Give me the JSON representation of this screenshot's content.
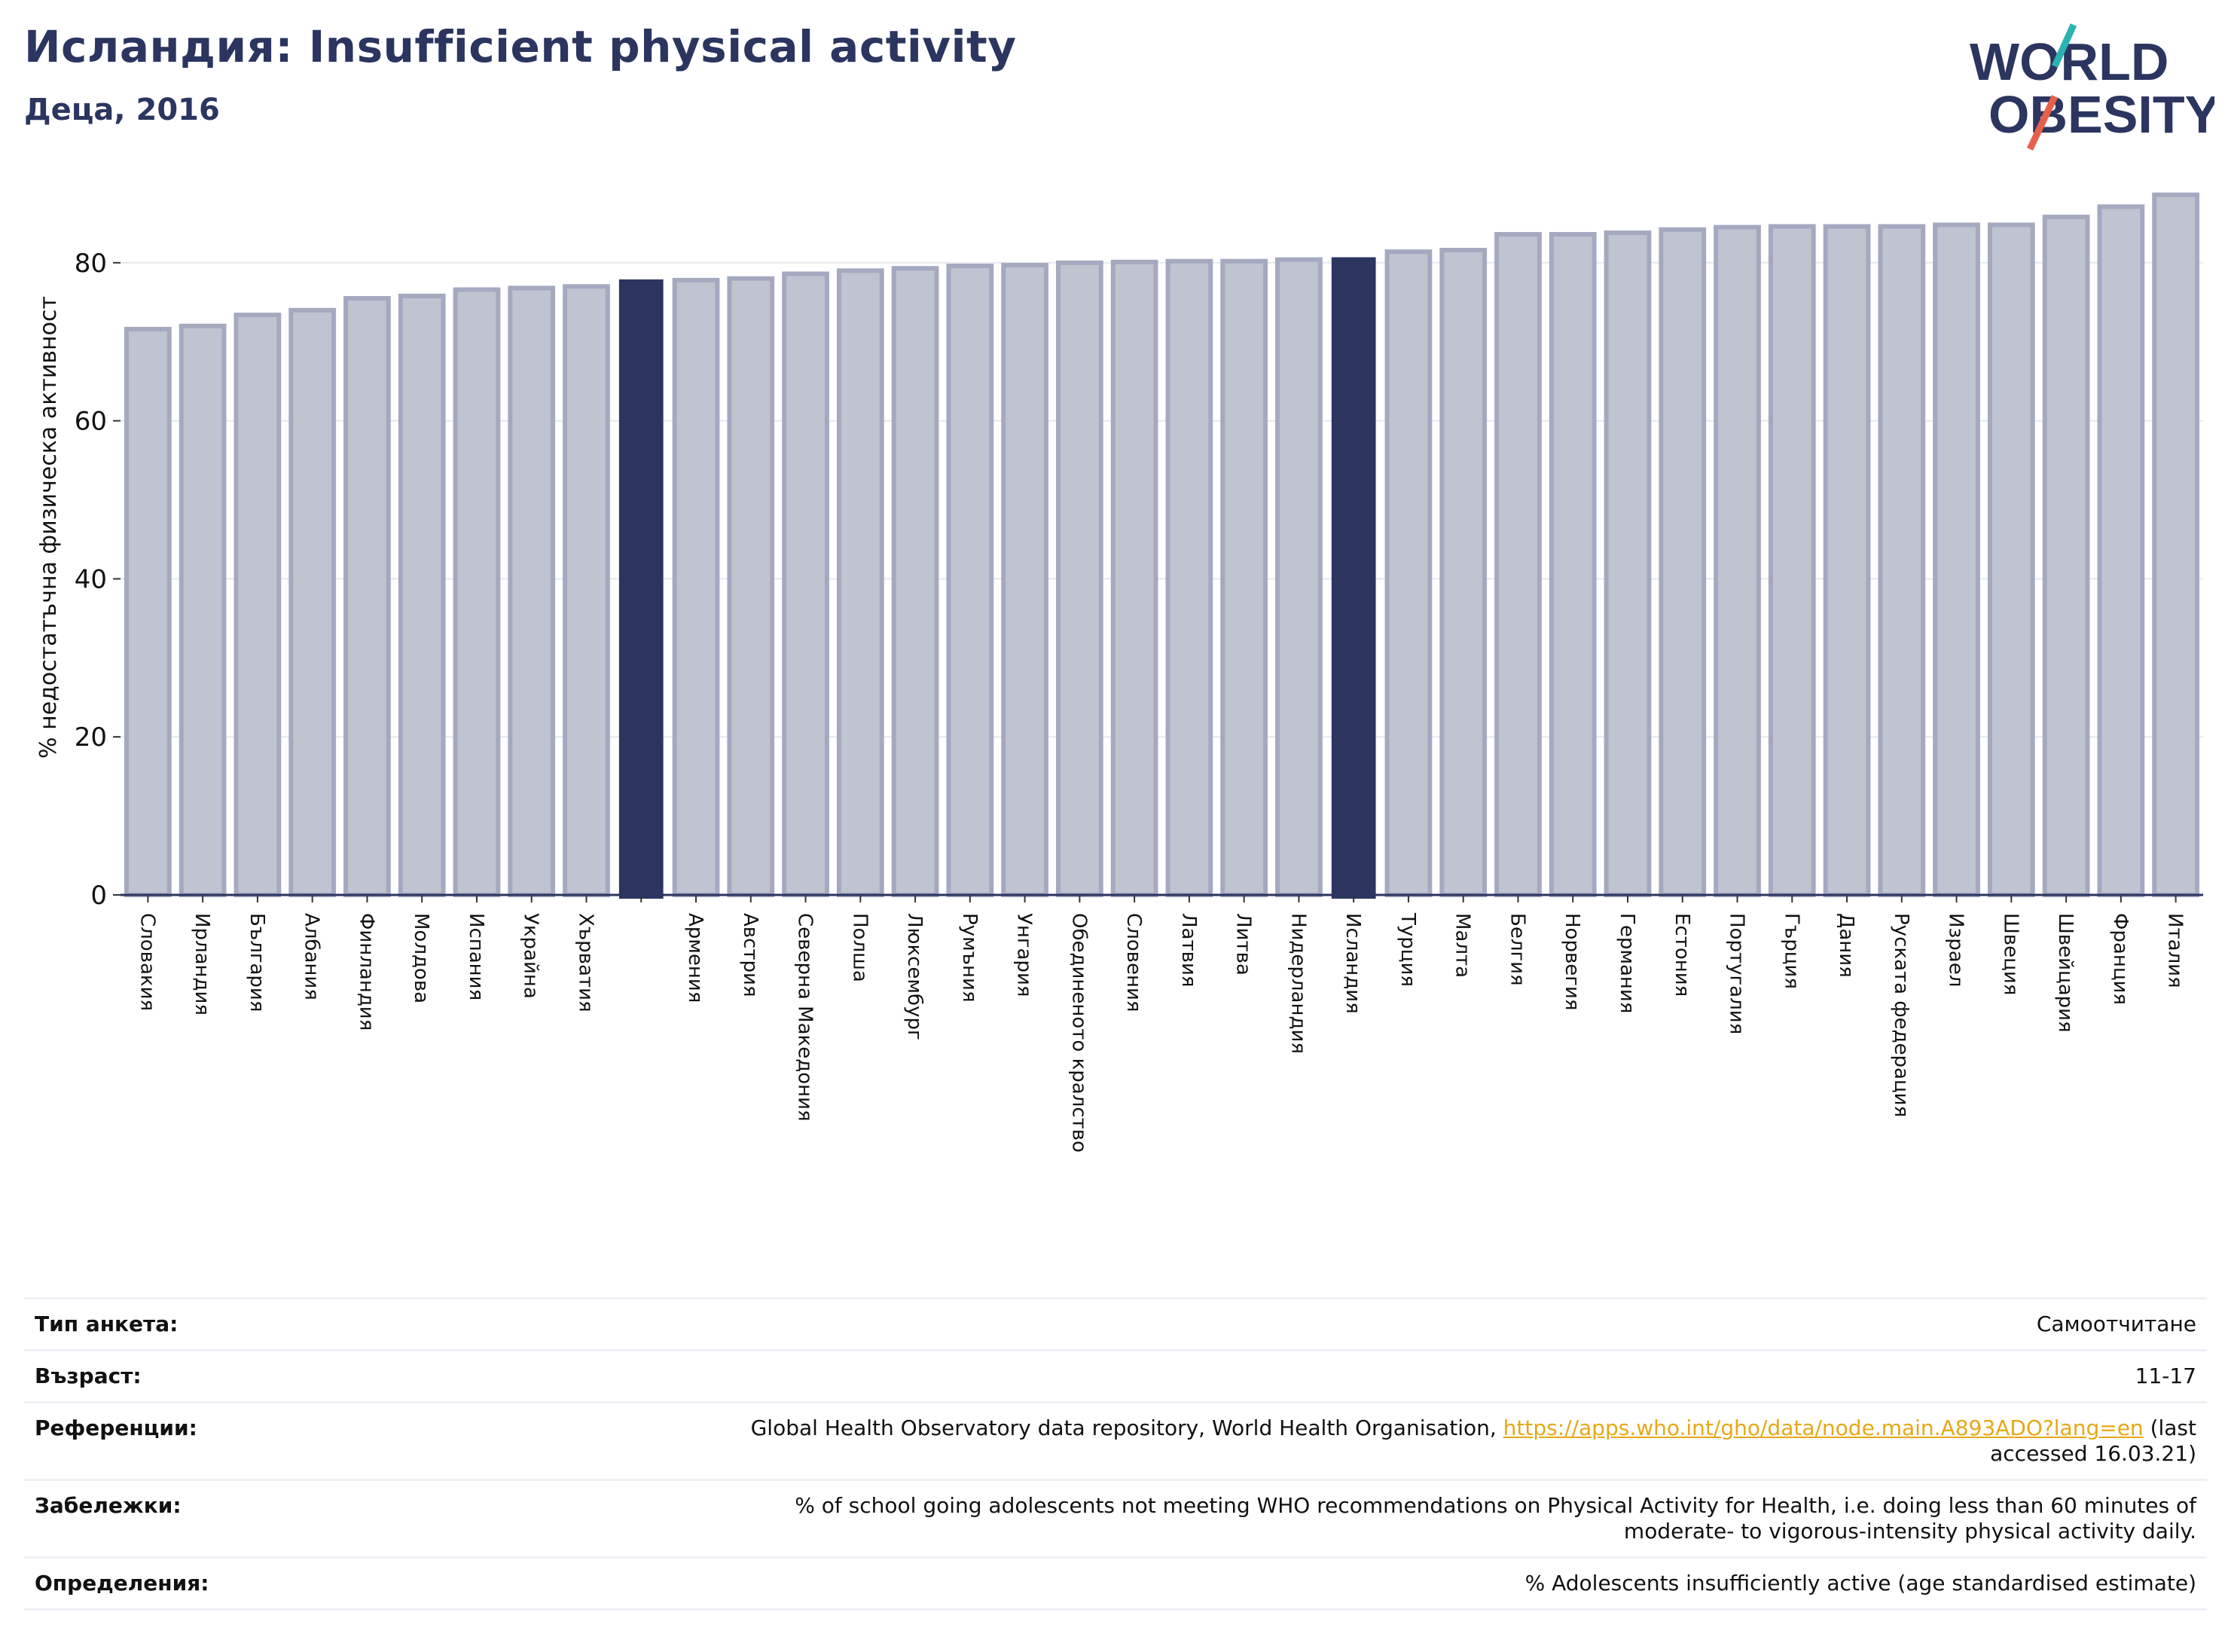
{
  "header": {
    "title": "Исландия: Insufficient physical activity",
    "subtitle": "Деца, 2016"
  },
  "logo": {
    "line1": "WORLD",
    "line2": "OBESITY",
    "accent_colors": [
      "#2bb3b1",
      "#e8604c"
    ],
    "text_color": "#2b3560"
  },
  "chart_data": {
    "type": "bar",
    "ylabel": "% недостатъчна физическа активност",
    "xlabel": "",
    "ylim": [
      0,
      90
    ],
    "yticks": [
      0,
      20,
      40,
      60,
      80
    ],
    "grid": true,
    "categories": [
      "Словакия",
      "Ирландия",
      "България",
      "Албания",
      "Финландия",
      "Молдова",
      "Испания",
      "Украйна",
      "Хърватия",
      "",
      "Армения",
      "Австрия",
      "Северна Македония",
      "Полша",
      "Люксембург",
      "Румъния",
      "Унгария",
      "Обединеното кралство",
      "Словения",
      "Латвия",
      "Литва",
      "Нидерландия",
      "Исландия",
      "Турция",
      "Малта",
      "Белгия",
      "Норвегия",
      "Германия",
      "Естония",
      "Португалия",
      "Гърция",
      "Дания",
      "Руската федерация",
      "Израел",
      "Швеция",
      "Швейцария",
      "Франция",
      "Италия"
    ],
    "values": [
      71.6,
      72.0,
      73.4,
      74.0,
      75.5,
      75.8,
      76.6,
      76.8,
      77.0,
      77.8,
      77.8,
      78.0,
      78.6,
      79.0,
      79.3,
      79.6,
      79.7,
      80.0,
      80.1,
      80.2,
      80.2,
      80.4,
      80.6,
      81.4,
      81.6,
      83.6,
      83.6,
      83.8,
      84.2,
      84.5,
      84.6,
      84.6,
      84.6,
      84.8,
      84.8,
      85.8,
      87.1,
      88.6
    ],
    "highlighted": [
      "",
      "Исландия"
    ],
    "colors": {
      "default_fill": "#c0c3d0",
      "default_stroke": "#a5a9c0",
      "highlight": "#2b3560",
      "axis": "#2b3560",
      "grid": "#e6e8ee"
    }
  },
  "meta": {
    "rows": [
      {
        "key": "Тип анкета:",
        "value": "Самоотчитане"
      },
      {
        "key": "Възраст:",
        "value": "11-17"
      },
      {
        "key": "Референции:",
        "value": "Global Health Observatory data repository, World Health Organisation, ",
        "link": "https://apps.who.int/gho/data/node.main.A893ADO?lang=en",
        "value_after": " (last accessed 16.03.21)"
      },
      {
        "key": "Забележки:",
        "value": "% of school going adolescents not meeting WHO recommendations on Physical Activity for Health, i.e. doing less than 60 minutes of moderate- to vigorous-intensity physical activity daily."
      },
      {
        "key": "Определения:",
        "value": "% Adolescents insufficiently active (age standardised estimate)"
      }
    ]
  }
}
